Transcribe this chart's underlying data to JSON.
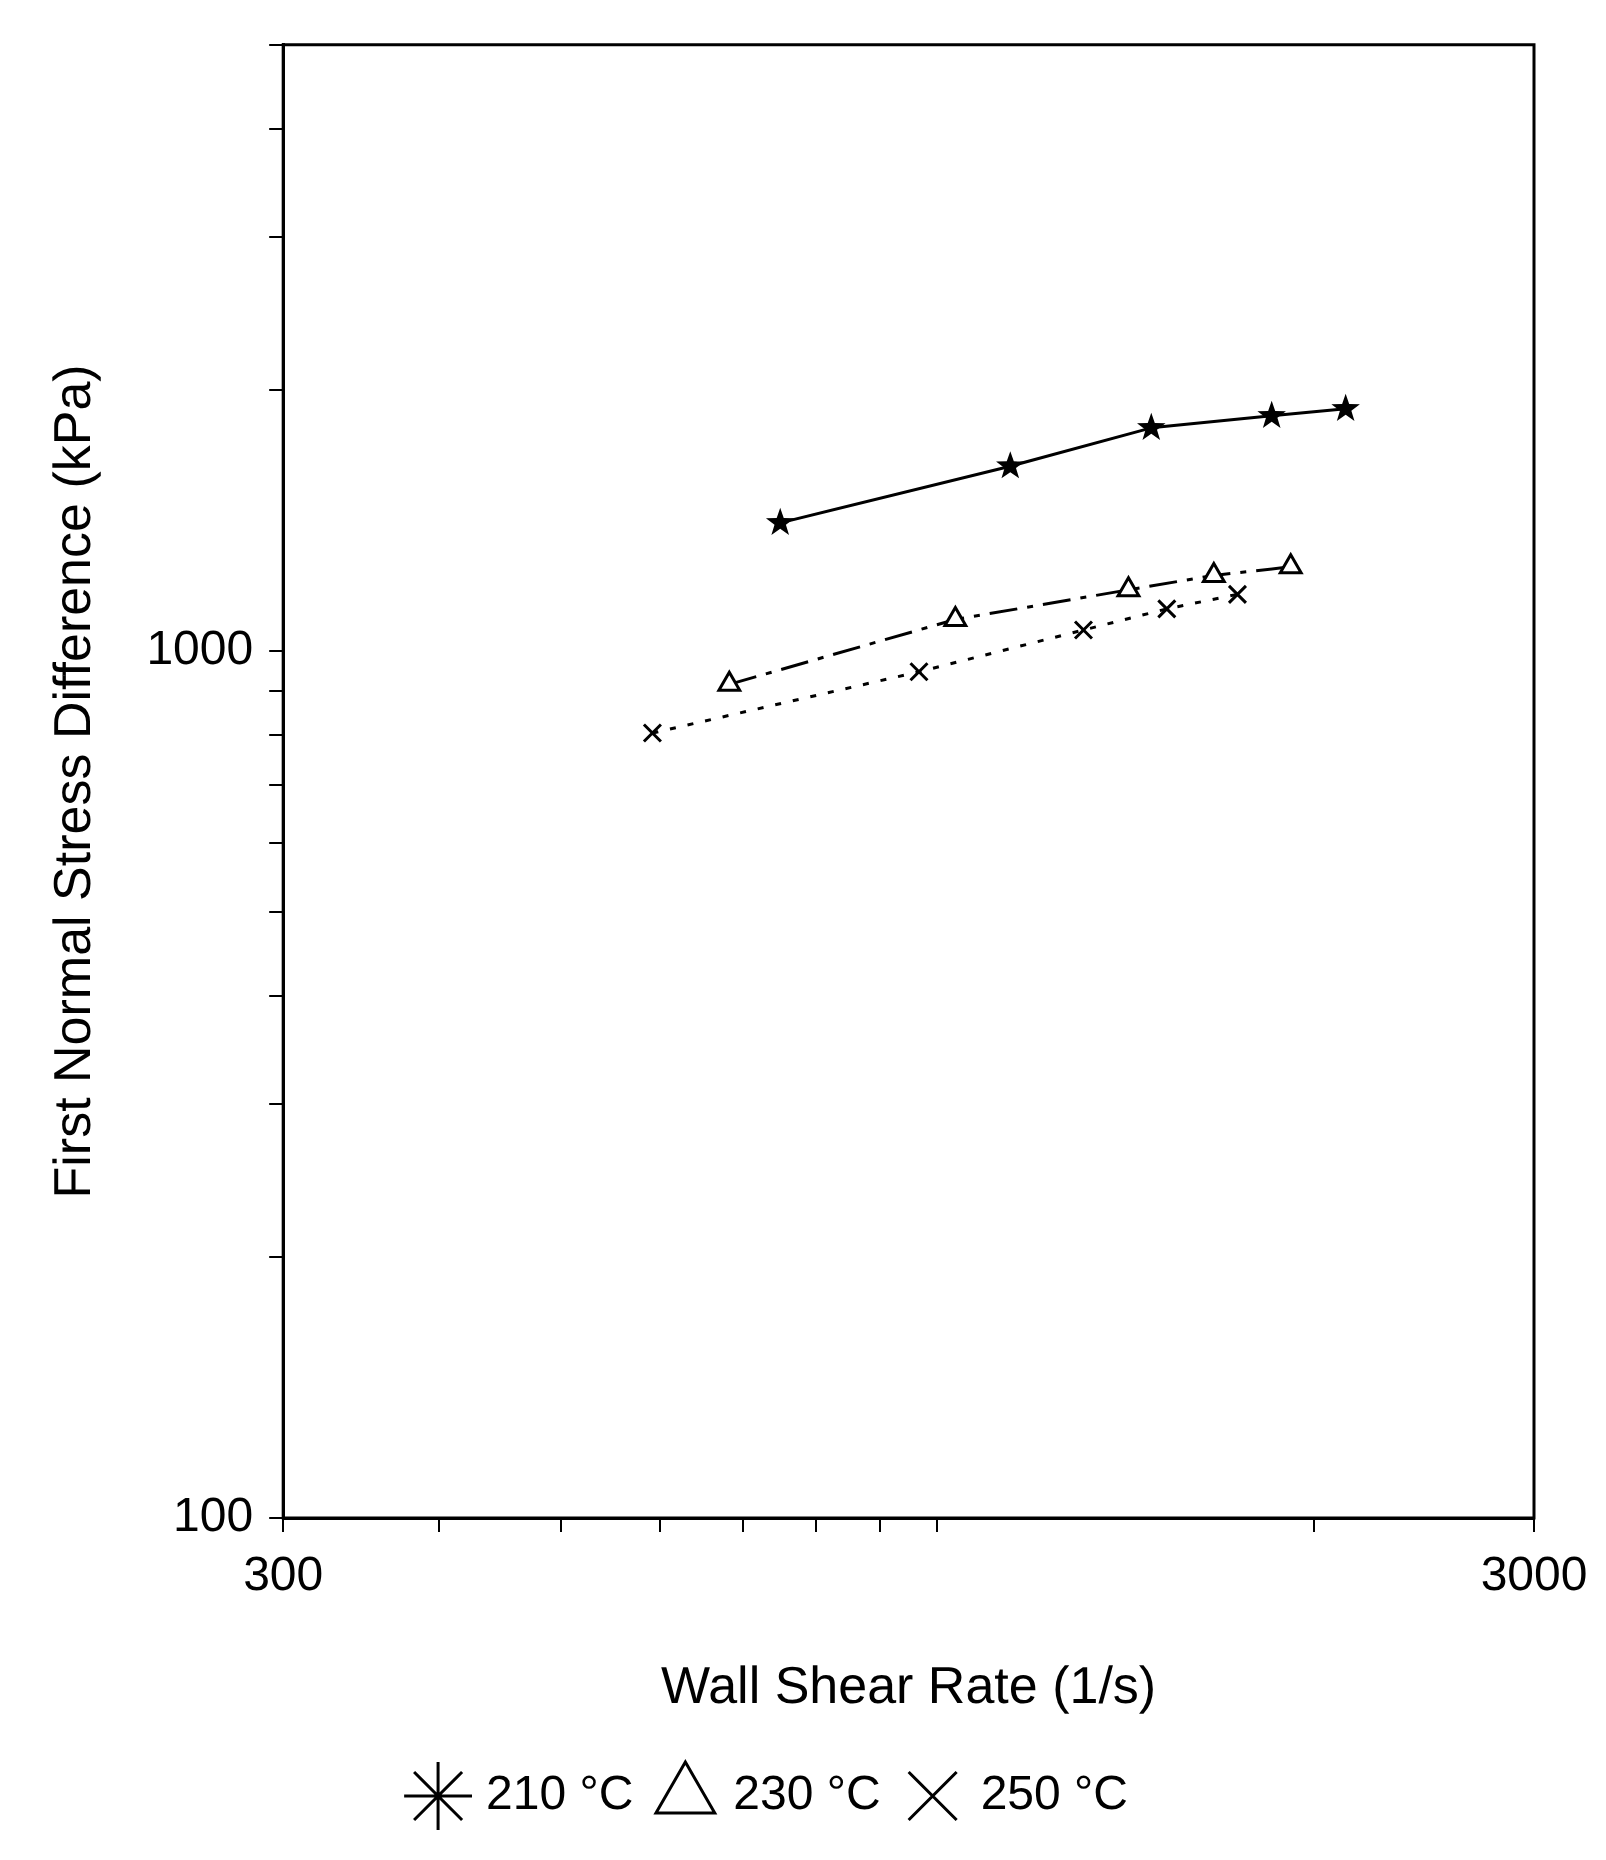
{
  "chart_data": {
    "type": "line",
    "xlabel": "Wall Shear Rate (1/s)",
    "ylabel": "First Normal Stress Difference (kPa)",
    "log": "xy",
    "grid": false,
    "legend": "bottom",
    "xlim": [
      300,
      3000
    ],
    "xticks": [
      300,
      {
        "value": 400,
        "label": null
      },
      {
        "value": 500,
        "label": null
      },
      {
        "value": 600,
        "label": null
      },
      {
        "value": 700,
        "label": null
      },
      {
        "value": 800,
        "label": null
      },
      {
        "value": 900,
        "label": null
      },
      {
        "value": 1000,
        "label": null
      },
      {
        "value": 2000,
        "label": null
      },
      3000
    ],
    "ylim": [
      100,
      5000
    ],
    "yticks": [
      100,
      {
        "value": 200,
        "label": null
      },
      {
        "value": 300,
        "label": null
      },
      {
        "value": 400,
        "label": null
      },
      {
        "value": 500,
        "label": null
      },
      {
        "value": 600,
        "label": null
      },
      {
        "value": 700,
        "label": null
      },
      {
        "value": 800,
        "label": null
      },
      {
        "value": 900,
        "label": null
      },
      1000,
      {
        "value": 2000,
        "label": null
      },
      {
        "value": 3000,
        "label": null
      },
      {
        "value": 4000,
        "label": null
      },
      {
        "value": 5000,
        "label": null
      }
    ],
    "series": [
      {
        "name": "210 °C",
        "color": "#000000",
        "marker": "star",
        "line_style": "solid",
        "x": [
          749,
          1144,
          1483,
          1851,
          2121
        ],
        "values": [
          1405,
          1633,
          1808,
          1867,
          1902
        ]
      },
      {
        "name": "230 °C",
        "color": "#000000",
        "marker": "triangle",
        "line_style": "dashed",
        "x": [
          682,
          1034,
          1422,
          1664,
          1917
        ],
        "values": [
          915,
          1087,
          1176,
          1222,
          1250
        ]
      },
      {
        "name": "250 °C",
        "color": "#000000",
        "marker": "cross",
        "line_style": "dotted",
        "x": [
          592,
          967,
          1309,
          1526,
          1738
        ],
        "values": [
          804,
          946,
          1057,
          1118,
          1162
        ]
      }
    ]
  }
}
